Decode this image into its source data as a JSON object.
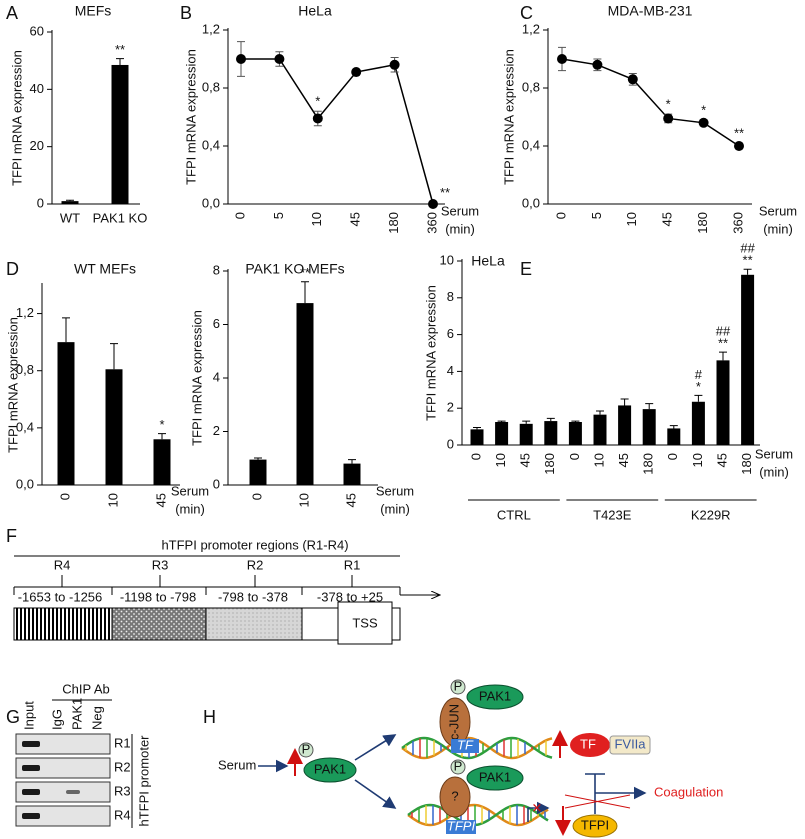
{
  "chart_data": [
    {
      "type": "bar",
      "label": "A",
      "title": "MEFs",
      "ylabel": "TFPI mRNA expression",
      "categories": [
        "WT",
        "PAK1 KO"
      ],
      "values": [
        1,
        48.5
      ],
      "errors": [
        0.3,
        2.2
      ],
      "significance": [
        null,
        "**"
      ],
      "color": "#000000",
      "ylim": [
        0,
        60
      ],
      "yticks": [
        0,
        20,
        40,
        60
      ]
    },
    {
      "type": "line",
      "label": "B",
      "title": "HeLa",
      "ylabel": "TFPI mRNA expression",
      "xlabel": [
        "Serum",
        "(min)"
      ],
      "categories": [
        "0",
        "5",
        "10",
        "45",
        "180",
        "360"
      ],
      "values": [
        1.0,
        1.0,
        0.59,
        0.91,
        0.96,
        0.0
      ],
      "errors": [
        0.12,
        0.05,
        0.05,
        0.01,
        0.05,
        0.01
      ],
      "significance": [
        null,
        null,
        "*",
        null,
        null,
        "**"
      ],
      "color": "#000000",
      "ylim": [
        0,
        1.2
      ],
      "yticks": [
        {
          "value": 0,
          "label": "0,0"
        },
        {
          "value": 0.4,
          "label": "0,4"
        },
        {
          "value": 0.8,
          "label": "0,8"
        },
        {
          "value": 1.2,
          "label": "1,2"
        }
      ]
    },
    {
      "type": "line",
      "label": "C",
      "title": "MDA-MB-231",
      "ylabel": "TFPI mRNA expression",
      "xlabel": [
        "Serum",
        "(min)"
      ],
      "categories": [
        "0",
        "5",
        "10",
        "45",
        "180",
        "360"
      ],
      "values": [
        1.0,
        0.96,
        0.86,
        0.59,
        0.56,
        0.4
      ],
      "errors": [
        0.08,
        0.04,
        0.04,
        0.03,
        0.02,
        0.02
      ],
      "significance": [
        null,
        null,
        null,
        "*",
        "*",
        "**"
      ],
      "color": "#000000",
      "ylim": [
        0,
        1.2
      ],
      "yticks": [
        {
          "value": 0,
          "label": "0,0"
        },
        {
          "value": 0.4,
          "label": "0,4"
        },
        {
          "value": 0.8,
          "label": "0,8"
        },
        {
          "value": 1.2,
          "label": "1,2"
        }
      ]
    },
    {
      "type": "bar",
      "label": "D",
      "title": "WT MEFs",
      "ylabel": "TFPI mRNA expression",
      "xlabel": [
        "Serum",
        "(min)"
      ],
      "categories": [
        "0",
        "10",
        "45"
      ],
      "values": [
        1.0,
        0.81,
        0.32
      ],
      "errors": [
        0.17,
        0.18,
        0.04
      ],
      "significance": [
        null,
        null,
        "*"
      ],
      "color": "#000000",
      "ylim": [
        0,
        1.4
      ],
      "yticks": [
        {
          "value": 0,
          "label": "0,0"
        },
        {
          "value": 0.4,
          "label": "0,4"
        },
        {
          "value": 0.8,
          "label": "0,8"
        },
        {
          "value": 1.2,
          "label": "1,2"
        }
      ]
    },
    {
      "type": "bar",
      "title": "PAK1 KO MEFs",
      "ylabel": "TFPI mRNA expression",
      "xlabel": [
        "Serum",
        "(min)"
      ],
      "categories": [
        "0",
        "10",
        "45"
      ],
      "values": [
        0.95,
        6.8,
        0.8
      ],
      "errors": [
        0.06,
        0.8,
        0.15
      ],
      "significance": [
        null,
        "**",
        null
      ],
      "color": "#000000",
      "ylim": [
        0,
        8
      ],
      "yticks": [
        0,
        2,
        4,
        6,
        8
      ]
    },
    {
      "type": "bar",
      "label": "E",
      "title": "HeLa",
      "ylabel": "TFPI mRNA expression",
      "xlabel": [
        "Serum",
        "(min)"
      ],
      "categories": [
        "0",
        "10",
        "45",
        "180",
        "0",
        "10",
        "45",
        "180",
        "0",
        "10",
        "45",
        "180"
      ],
      "groups": [
        "CTRL",
        "T423E",
        "K229R"
      ],
      "values": [
        0.85,
        1.25,
        1.15,
        1.3,
        1.25,
        1.65,
        2.15,
        1.95,
        0.9,
        2.35,
        4.6,
        9.25
      ],
      "errors": [
        0.1,
        0.05,
        0.15,
        0.15,
        0.05,
        0.2,
        0.35,
        0.3,
        0.15,
        0.35,
        0.45,
        0.3
      ],
      "significance": [
        null,
        null,
        null,
        null,
        null,
        null,
        null,
        null,
        null,
        "*",
        "**",
        "**"
      ],
      "significance_top": [
        null,
        null,
        null,
        null,
        null,
        null,
        null,
        null,
        null,
        "#",
        "##",
        "##"
      ],
      "color": "#000000",
      "ylim": [
        0,
        10
      ],
      "yticks": [
        0,
        2,
        4,
        6,
        8,
        10
      ]
    }
  ],
  "promoter": {
    "label": "F",
    "title": "hTFPI  promoter regions (R1-R4)",
    "regions": [
      {
        "name": "R4",
        "range": "-1653 to -1256"
      },
      {
        "name": "R3",
        "range": "-1198 to -798"
      },
      {
        "name": "R2",
        "range": "-798 to -378"
      },
      {
        "name": "R1",
        "range": "-378 to +25"
      }
    ],
    "tss": "TSS"
  },
  "chip": {
    "label": "G",
    "title": "ChIP Ab",
    "lanes": [
      "Input",
      "IgG",
      "PAK1",
      "Neg"
    ],
    "rows": [
      "R1",
      "R2",
      "R3",
      "R4"
    ],
    "side_label": "hTFPI promoter"
  },
  "model": {
    "label": "H",
    "serum": "Serum",
    "kinase": "PAK1",
    "phospho": "P",
    "cofactor": "c-JUN",
    "unknown": "?",
    "tf_gene": "TF",
    "tf_protein": "TF",
    "fviia": "FVIIa",
    "tfpi_gene": "TFPI",
    "tfpi_protein": "TFPI",
    "outcome": "Coagulation"
  }
}
